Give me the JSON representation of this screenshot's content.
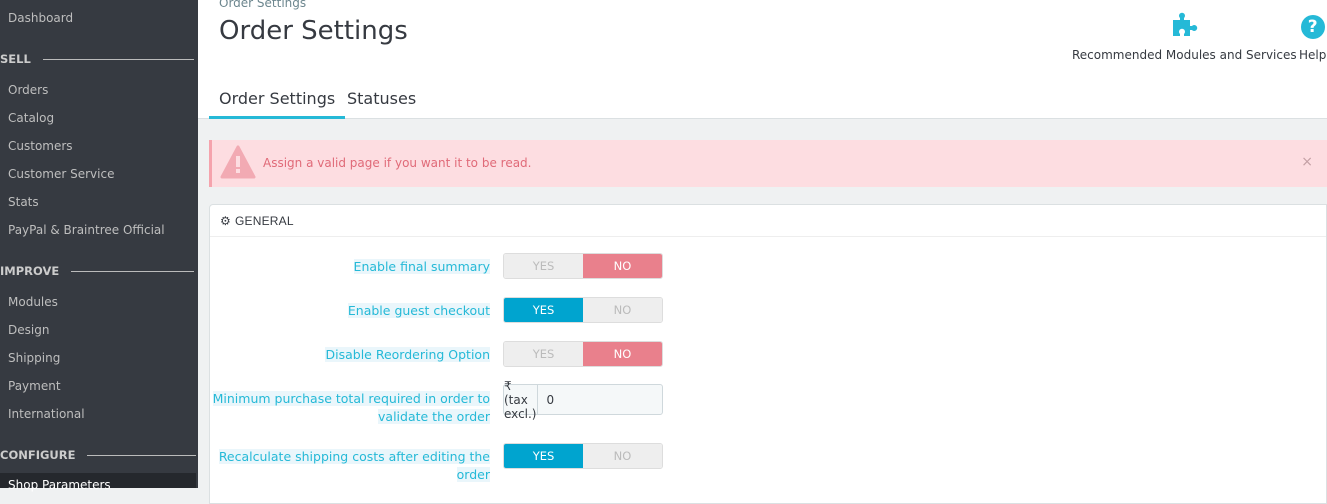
{
  "sidebar": {
    "dashboard": "Dashboard",
    "sections": [
      {
        "title": "SELL",
        "items": [
          "Orders",
          "Catalog",
          "Customers",
          "Customer Service",
          "Stats",
          "PayPal & Braintree Official"
        ]
      },
      {
        "title": "IMPROVE",
        "items": [
          "Modules",
          "Design",
          "Shipping",
          "Payment",
          "International"
        ]
      },
      {
        "title": "CONFIGURE",
        "items": [
          "Shop Parameters"
        ]
      }
    ]
  },
  "header": {
    "breadcrumb": "Order Settings",
    "title": "Order Settings",
    "toolbar": {
      "modules": "Recommended Modules and Services",
      "help": "Help"
    },
    "tabs": [
      "Order Settings",
      "Statuses"
    ],
    "active_tab": "Order Settings"
  },
  "alert": {
    "message": "Assign a valid page if you want it to be read.",
    "close": "×"
  },
  "panel": {
    "title": "GENERAL",
    "fields": [
      {
        "label": "Enable final summary",
        "type": "switch",
        "value": "NO"
      },
      {
        "label": "Enable guest checkout",
        "type": "switch",
        "value": "YES"
      },
      {
        "label": "Disable Reordering Option",
        "type": "switch",
        "value": "NO"
      },
      {
        "label": "Minimum purchase total required in order to validate the order",
        "type": "input",
        "addon": "₹ (tax excl.)",
        "value": "0"
      },
      {
        "label": "Recalculate shipping costs after editing the order",
        "type": "switch",
        "value": "YES"
      }
    ],
    "yes": "YES",
    "no": "NO"
  },
  "colors": {
    "accent": "#25b9d7",
    "yes": "#00a4cf",
    "no": "#e9808c",
    "sidebar": "#363a41"
  }
}
